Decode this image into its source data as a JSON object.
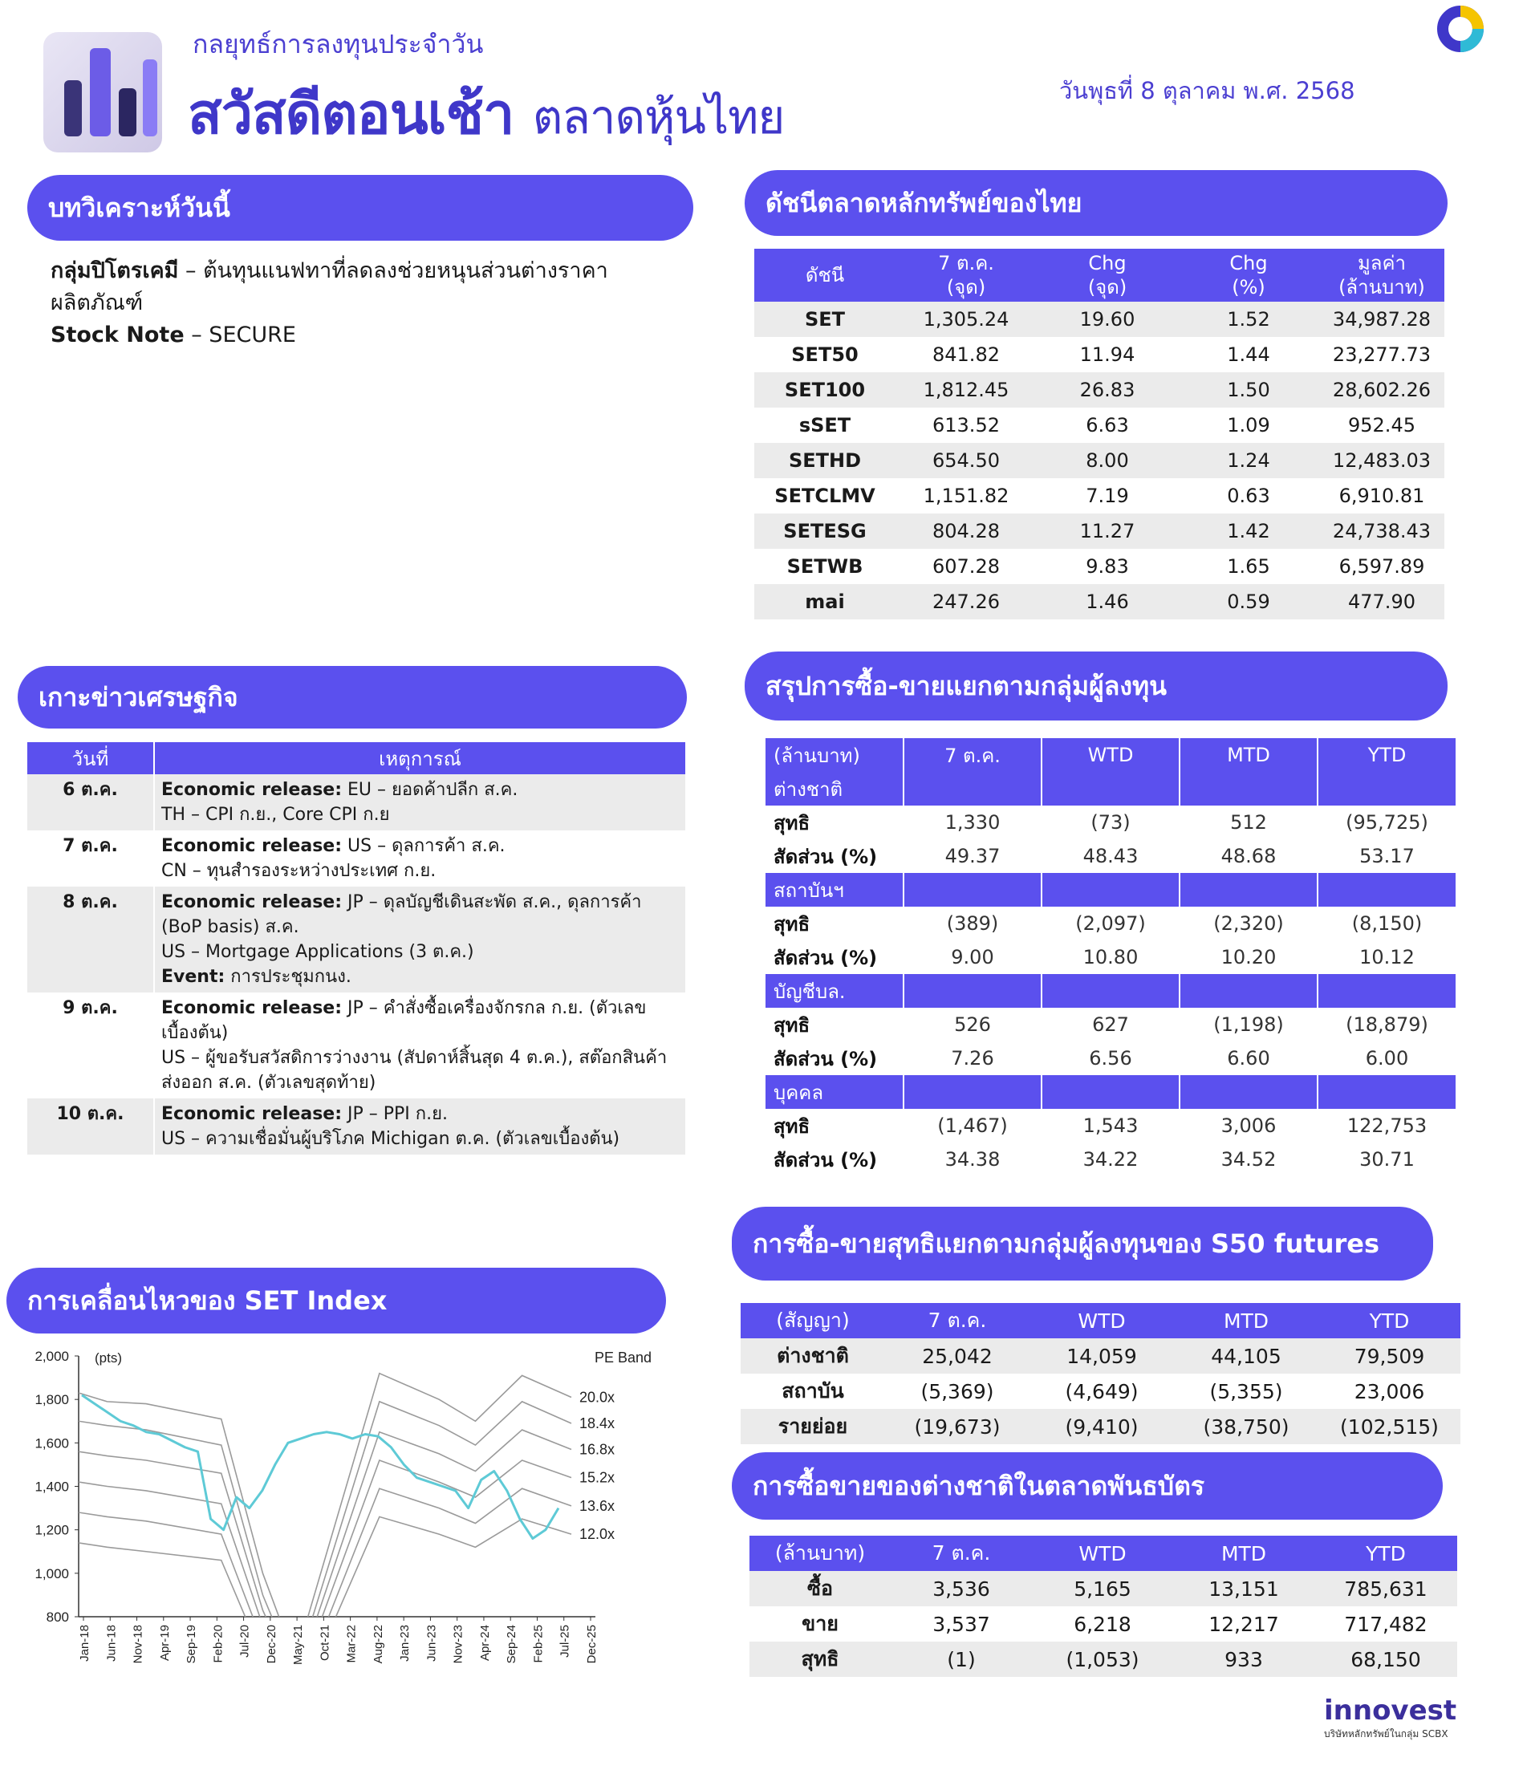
{
  "header": {
    "subtitle": "กลยุทธ์การลงทุนประจำวัน",
    "title_main": "สวัสดีตอนเช้า",
    "title_sub": "ตลาดหุ้นไทย",
    "date": "วันพุธที่ 8 ตุลาคม พ.ศ. 2568"
  },
  "analysis": {
    "heading": "บทวิเคราะห์วันนี้",
    "item1_bold": "กลุ่มปิโตรเคมี",
    "item1_text": " – ต้นทุนแนฟทาที่ลดลงช่วยหนุนส่วนต่างราคา",
    "item1_text2": "ผลิตภัณฑ์",
    "item2_bold": "Stock Note",
    "item2_text": " – SECURE"
  },
  "index_table": {
    "heading": "ดัชนีตลาดหลักทรัพย์ของไทย",
    "headers": [
      "ดัชนี",
      "7 ต.ค.",
      "(จุด)",
      "Chg",
      "(จุด)",
      "Chg",
      "(%)",
      "มูลค่า",
      "(ล้านบาท)"
    ],
    "rows": [
      [
        "SET",
        "1,305.24",
        "19.60",
        "1.52",
        "34,987.28"
      ],
      [
        "SET50",
        "841.82",
        "11.94",
        "1.44",
        "23,277.73"
      ],
      [
        "SET100",
        "1,812.45",
        "26.83",
        "1.50",
        "28,602.26"
      ],
      [
        "sSET",
        "613.52",
        "6.63",
        "1.09",
        "952.45"
      ],
      [
        "SETHD",
        "654.50",
        "8.00",
        "1.24",
        "12,483.03"
      ],
      [
        "SETCLMV",
        "1,151.82",
        "7.19",
        "0.63",
        "6,910.81"
      ],
      [
        "SETESG",
        "804.28",
        "11.27",
        "1.42",
        "24,738.43"
      ],
      [
        "SETWB",
        "607.28",
        "9.83",
        "1.65",
        "6,597.89"
      ],
      [
        "mai",
        "247.26",
        "1.46",
        "0.59",
        "477.90"
      ]
    ]
  },
  "econ": {
    "heading": "เกาะข่าวเศรษฐกิจ",
    "col_date": "วันที่",
    "col_event": "เหตุการณ์",
    "rows": [
      {
        "day": "6 ต.ค.",
        "l1b": "Economic release:",
        "l1": " EU – ยอดค้าปลีก ส.ค.",
        "l2": "TH – CPI ก.ย., Core CPI ก.ย",
        "l3": "",
        "l4b": "",
        "l4": ""
      },
      {
        "day": "7 ต.ค.",
        "l1b": "Economic release:",
        "l1": " US – ดุลการค้า ส.ค.",
        "l2": "CN – ทุนสำรองระหว่างประเทศ ก.ย.",
        "l3": "",
        "l4b": "",
        "l4": ""
      },
      {
        "day": "8 ต.ค.",
        "l1b": "Economic release:",
        "l1": " JP – ดุลบัญชีเดินสะพัด ส.ค., ดุลการค้า (BoP basis) ส.ค.",
        "l2": "US – Mortgage Applications (3 ต.ค.)",
        "l3": "",
        "l4b": "Event:",
        "l4": " การประชุมกนง."
      },
      {
        "day": "9 ต.ค.",
        "l1b": "Economic release:",
        "l1": " JP – คำสั่งซื้อเครื่องจักรกล ก.ย. (ตัวเลขเบื้องต้น)",
        "l2": "US – ผู้ขอรับสวัสดิการว่างงาน (สัปดาห์สิ้นสุด 4 ต.ค.), สต๊อกสินค้าส่งออก ส.ค. (ตัวเลขสุดท้าย)",
        "l3": "",
        "l4b": "",
        "l4": ""
      },
      {
        "day": "10 ต.ค.",
        "l1b": "Economic release:",
        "l1": " JP – PPI ก.ย.",
        "l2": "US – ความเชื่อมั่นผู้บริโภค Michigan ต.ค. (ตัวเลขเบื้องต้น)",
        "l3": "",
        "l4b": "",
        "l4": ""
      }
    ]
  },
  "investor": {
    "heading": "สรุปการซื้อ-ขายแยกตามกลุ่มผู้ลงทุน",
    "headers": [
      "(ล้านบาท)",
      "7 ต.ค.",
      "WTD",
      "MTD",
      "YTD"
    ],
    "net_label": "สุทธิ",
    "share_label": "สัดส่วน (%)",
    "groups": [
      {
        "name": "ต่างชาติ",
        "net": [
          "1,330",
          "(73)",
          "512",
          "(95,725)"
        ],
        "share": [
          "49.37",
          "48.43",
          "48.68",
          "53.17"
        ]
      },
      {
        "name": "สถาบันฯ",
        "net": [
          "(389)",
          "(2,097)",
          "(2,320)",
          "(8,150)"
        ],
        "share": [
          "9.00",
          "10.80",
          "10.20",
          "10.12"
        ]
      },
      {
        "name": "บัญชีบล.",
        "net": [
          "526",
          "627",
          "(1,198)",
          "(18,879)"
        ],
        "share": [
          "7.26",
          "6.56",
          "6.60",
          "6.00"
        ]
      },
      {
        "name": "บุคคล",
        "net": [
          "(1,467)",
          "1,543",
          "3,006",
          "122,753"
        ],
        "share": [
          "34.38",
          "34.22",
          "34.52",
          "30.71"
        ]
      }
    ]
  },
  "futures": {
    "heading": "การซื้อ-ขายสุทธิแยกตามกลุ่มผู้ลงทุนของ S50 futures",
    "headers": [
      "(สัญญา)",
      "7 ต.ค.",
      "WTD",
      "MTD",
      "YTD"
    ],
    "rows": [
      [
        "ต่างชาติ",
        "25,042",
        "14,059",
        "44,105",
        "79,509"
      ],
      [
        "สถาบัน",
        "(5,369)",
        "(4,649)",
        "(5,355)",
        "23,006"
      ],
      [
        "รายย่อย",
        "(19,673)",
        "(9,410)",
        "(38,750)",
        "(102,515)"
      ]
    ]
  },
  "bond": {
    "heading": "การซื้อขายของต่างชาติในตลาดพันธบัตร",
    "headers": [
      "(ล้านบาท)",
      "7 ต.ค.",
      "WTD",
      "MTD",
      "YTD"
    ],
    "rows": [
      [
        "ซื้อ",
        "3,536",
        "5,165",
        "13,151",
        "785,631"
      ],
      [
        "ขาย",
        "3,537",
        "6,218",
        "12,217",
        "717,482"
      ],
      [
        "สุทธิ",
        "(1)",
        "(1,053)",
        "933",
        "68,150"
      ]
    ]
  },
  "chart_section": {
    "heading": "การเคลื่อนไหวของ SET Index"
  },
  "chart_data": {
    "type": "line",
    "ylabel": "(pts)",
    "legend_title": "PE Band",
    "ylim": [
      800,
      2000
    ],
    "yticks": [
      "2,000",
      "1,800",
      "1,600",
      "1,400",
      "1,200",
      "1,000",
      "800"
    ],
    "xticks": [
      "Jan-18",
      "Jun-18",
      "Nov-18",
      "Apr-19",
      "Sep-19",
      "Feb-20",
      "Jul-20",
      "Dec-20",
      "May-21",
      "Oct-21",
      "Mar-22",
      "Aug-22",
      "Jan-23",
      "Jun-23",
      "Nov-23",
      "Apr-24",
      "Sep-24",
      "Feb-25",
      "Jul-25",
      "Dec-25"
    ],
    "band_labels": [
      "20.0x",
      "18.4x",
      "16.8x",
      "15.2x",
      "13.6x",
      "12.0x"
    ],
    "series_color": "#5ecad6",
    "band_color": "#9a9a9a",
    "set_index": [
      1820,
      1780,
      1740,
      1700,
      1680,
      1650,
      1640,
      1610,
      1580,
      1560,
      1250,
      1200,
      1350,
      1300,
      1380,
      1500,
      1600,
      1620,
      1640,
      1650,
      1640,
      1620,
      1640,
      1630,
      1580,
      1500,
      1440,
      1420,
      1400,
      1380,
      1300,
      1430,
      1470,
      1380,
      1250,
      1160,
      1200,
      1300
    ],
    "band_x": [
      0,
      22,
      52,
      110,
      142,
      167,
      232,
      278,
      306,
      342,
      380
    ],
    "band_20_0": [
      1830,
      1790,
      1780,
      1710,
      1000,
      600,
      1920,
      1800,
      1700,
      1910,
      1810
    ],
    "band_18_4": [
      1700,
      1680,
      1660,
      1590,
      900,
      540,
      1790,
      1680,
      1590,
      1790,
      1690
    ],
    "band_16_8": [
      1560,
      1540,
      1520,
      1460,
      830,
      500,
      1650,
      1550,
      1470,
      1660,
      1570
    ],
    "band_15_2": [
      1420,
      1400,
      1380,
      1320,
      760,
      460,
      1520,
      1420,
      1350,
      1520,
      1440
    ],
    "band_13_6": [
      1280,
      1260,
      1240,
      1180,
      680,
      410,
      1390,
      1300,
      1230,
      1390,
      1310
    ],
    "band_12_0": [
      1140,
      1120,
      1100,
      1060,
      610,
      370,
      1260,
      1180,
      1120,
      1250,
      1180
    ]
  },
  "footer": {
    "brand": "innovest",
    "tagline": "บริษัทหลักทรัพย์ในกลุ่ม SCBX"
  }
}
